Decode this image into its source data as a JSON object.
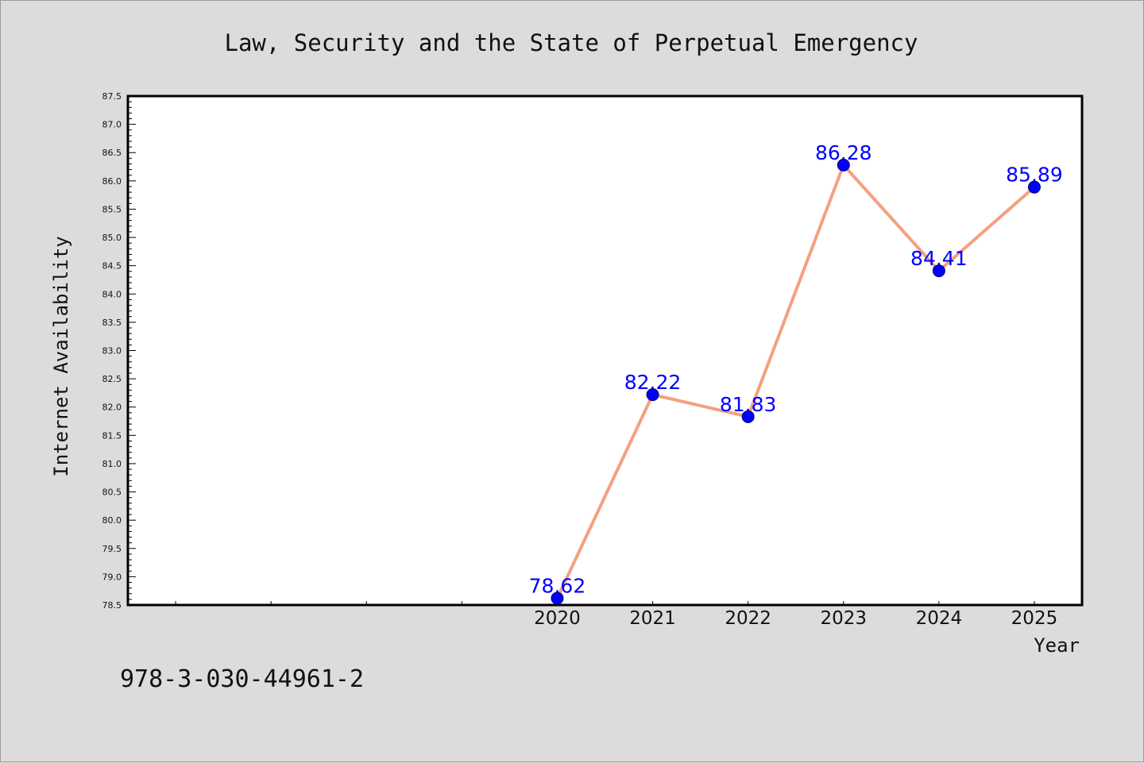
{
  "chart_data": {
    "type": "line",
    "title": "Law, Security and the State of Perpetual Emergency",
    "xlabel": "Year",
    "ylabel": "Internet Availability",
    "x": [
      "2020",
      "2021",
      "2022",
      "2023",
      "2024",
      "2025"
    ],
    "series": [
      {
        "values": [
          78.62,
          82.22,
          81.83,
          86.28,
          84.41,
          85.89
        ],
        "data_labels": [
          "78.62",
          "82.22",
          "81.83",
          "86.28",
          "84.41",
          "85.89"
        ]
      }
    ],
    "ylim": [
      78.5,
      87.5
    ],
    "yticks": [
      "78.5",
      "79.0",
      "79.5",
      "80.0",
      "80.5",
      "81.0",
      "81.5",
      "82.0",
      "82.5",
      "83.0",
      "83.5",
      "84.0",
      "84.5",
      "85.0",
      "85.5",
      "86.0",
      "86.5",
      "87.0",
      "87.5"
    ],
    "x_axis_slots": 10,
    "x_data_start_slot": 4,
    "grid": false,
    "legend": "none",
    "colors": {
      "line": "#f4a081",
      "marker": "#0000ff",
      "data_label": "#0000ff",
      "background": "#dcdcdc",
      "plot_background": "#ffffff"
    }
  },
  "footer": {
    "isbn": "978-3-030-44961-2"
  }
}
